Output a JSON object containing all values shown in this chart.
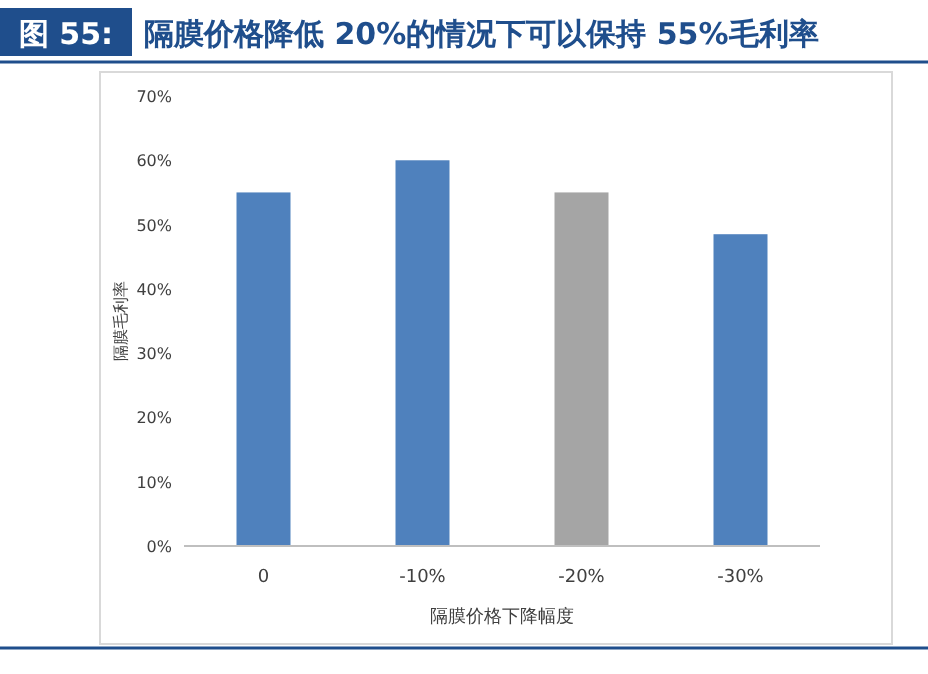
{
  "chart_data": {
    "type": "bar",
    "title": "图 55: 隔膜价格降低 20%的情况下可以保持 55%毛利率",
    "xlabel": "隔膜价格下降幅度",
    "ylabel": "隔膜毛利率",
    "categories": [
      "0",
      "-10%",
      "-20%",
      "-30%"
    ],
    "values": [
      55,
      60,
      55,
      48.5
    ],
    "colors": [
      "#4f81bd",
      "#4f81bd",
      "#a5a5a5",
      "#4f81bd"
    ],
    "ylim": [
      0,
      70
    ],
    "yticks": [
      {
        "value": 0,
        "label": "0%"
      },
      {
        "value": 10,
        "label": "10%"
      },
      {
        "value": 20,
        "label": "20%"
      },
      {
        "value": 30,
        "label": "30%"
      },
      {
        "value": 40,
        "label": "40%"
      },
      {
        "value": 50,
        "label": "50%"
      },
      {
        "value": 60,
        "label": "60%"
      },
      {
        "value": 70,
        "label": "70%"
      }
    ],
    "grid": false
  }
}
